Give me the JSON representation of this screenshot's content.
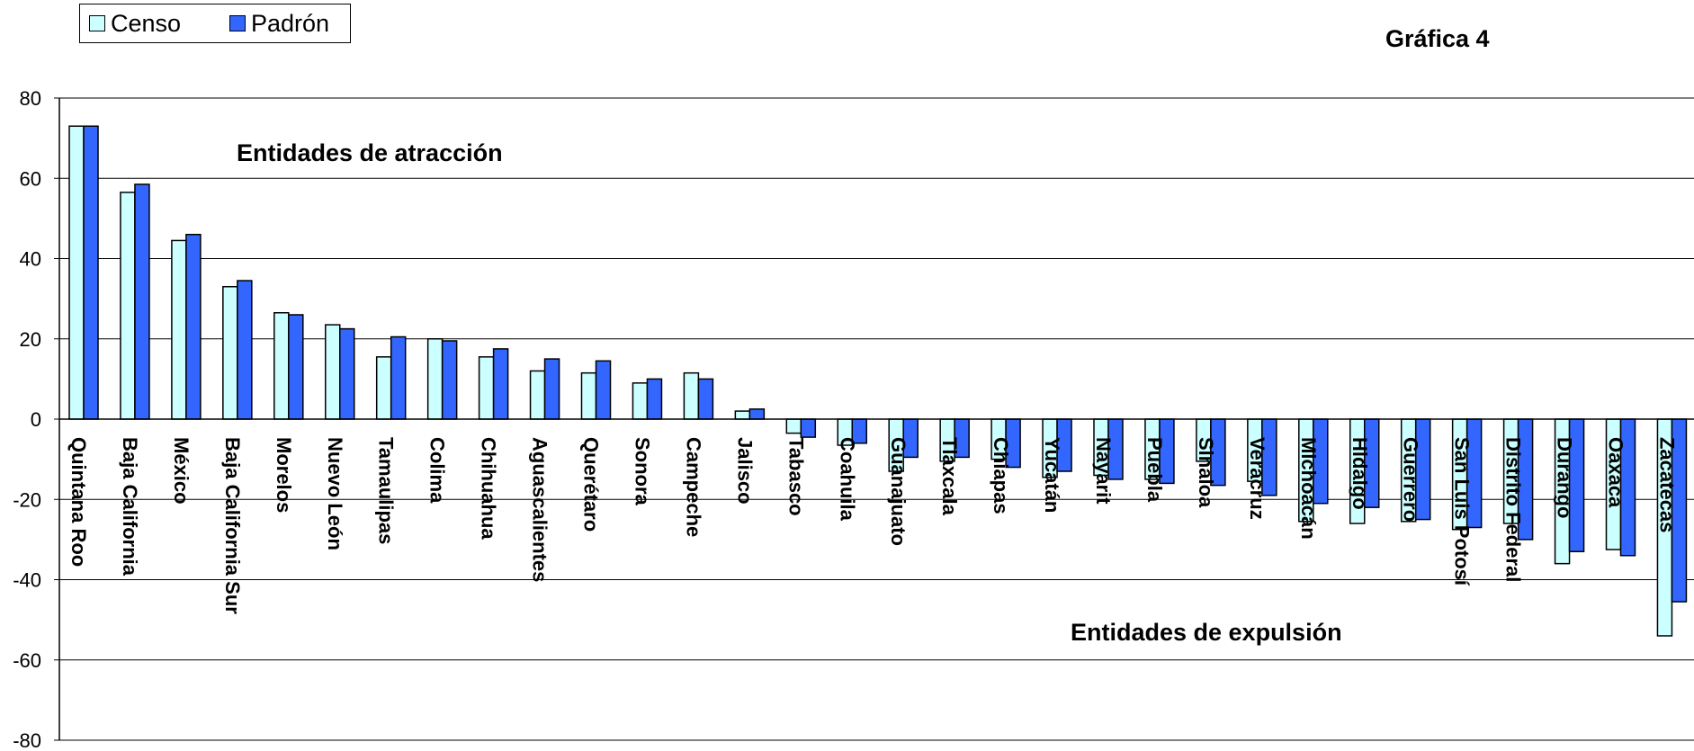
{
  "title": "Gráfica 4",
  "chart_data": {
    "type": "bar",
    "title": "Gráfica 4",
    "xlabel": "",
    "ylabel": "",
    "ylim": [
      -80,
      80
    ],
    "yticks": [
      80,
      60,
      40,
      20,
      0,
      -20,
      -40,
      -60,
      -80
    ],
    "grid": true,
    "legend_position": "top-left",
    "categories": [
      "Quintana Roo",
      "Baja California",
      "México",
      "Baja California Sur",
      "Morelos",
      "Nuevo León",
      "Tamaulipas",
      "Colima",
      "Chihuahua",
      "Aguascalientes",
      "Querétaro",
      "Sonora",
      "Campeche",
      "Jalisco",
      "Tabasco",
      "Coahuila",
      "Guanajuato",
      "Tlaxcala",
      "Chiapas",
      "Yucatán",
      "Nayarit",
      "Puebla",
      "Sinaloa",
      "Veracruz",
      "Michoacán",
      "Hidalgo",
      "Guerrero",
      "San Luis Potosí",
      "Distrito Federal",
      "Durango",
      "Oaxaca",
      "Zacatecas"
    ],
    "series": [
      {
        "name": "Censo",
        "color": "#ccffff",
        "values": [
          73,
          56.5,
          44.5,
          33,
          26.5,
          23.5,
          15.5,
          20,
          15.5,
          12,
          11.5,
          9,
          11.5,
          2,
          -3.5,
          -6.5,
          -13,
          -10.5,
          -10,
          -14.5,
          -14,
          -15,
          -10.5,
          -15.5,
          -25.5,
          -26,
          -25.5,
          -27.5,
          -26,
          -36,
          -32.5,
          -54
        ]
      },
      {
        "name": "Padrón",
        "color": "#3366ff",
        "values": [
          73,
          58.5,
          46,
          34.5,
          26,
          22.5,
          20.5,
          19.5,
          17.5,
          15,
          14.5,
          10,
          10,
          2.5,
          -4.5,
          -6,
          -9.5,
          -9.5,
          -12,
          -13,
          -15,
          -16,
          -16.5,
          -19,
          -21,
          -22,
          -25,
          -27,
          -30,
          -33,
          -34,
          -45.5
        ]
      }
    ],
    "annotations": [
      "Entidades de atracción",
      "Entidades de expulsión"
    ]
  }
}
